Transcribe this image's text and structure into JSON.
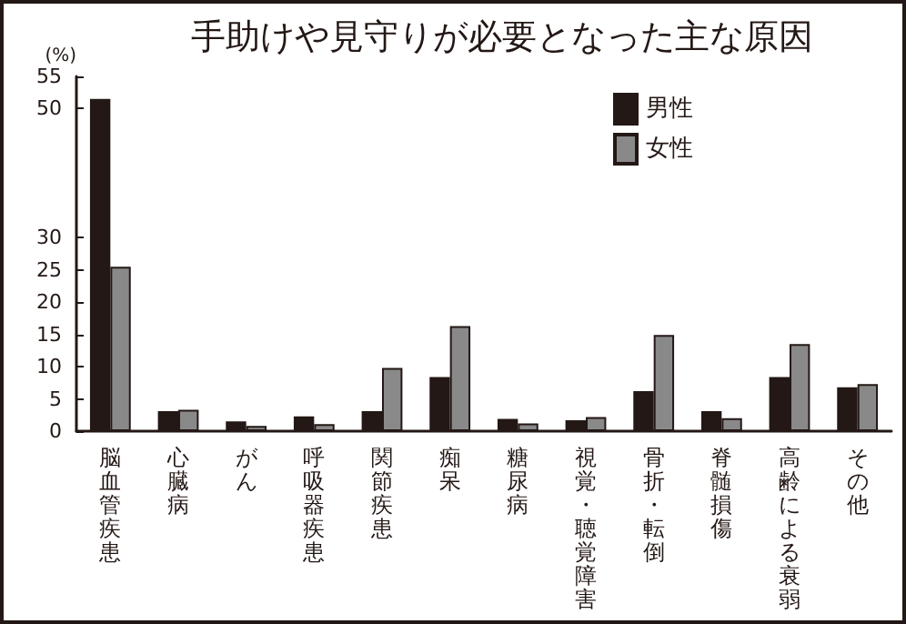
{
  "chart_data": {
    "type": "bar",
    "title": "手助けや見守りが必要となった主な原因",
    "ylabel": "(%)",
    "categories": [
      "脳血管疾患",
      "心臓病",
      "がん",
      "呼吸器疾患",
      "関節疾患",
      "痴呆",
      "糖尿病",
      "視覚・聴覚障害",
      "骨折・転倒",
      "脊髄損傷",
      "高齢による衰弱",
      "その他"
    ],
    "series": [
      {
        "name": "男性",
        "color": "#231815",
        "values": [
          51.5,
          3.1,
          1.5,
          2.3,
          3.1,
          8.4,
          1.9,
          1.7,
          6.2,
          3.1,
          8.4,
          6.8
        ]
      },
      {
        "name": "女性",
        "color": "#898989",
        "values": [
          25.5,
          3.3,
          0.8,
          1.1,
          9.8,
          16.3,
          1.2,
          2.2,
          14.9,
          2.0,
          13.5,
          7.3
        ]
      }
    ],
    "ylim": [
      0,
      55
    ],
    "yticks": [
      0,
      5,
      10,
      15,
      20,
      25,
      30,
      50,
      55
    ],
    "grid": false,
    "legend": "top right"
  }
}
